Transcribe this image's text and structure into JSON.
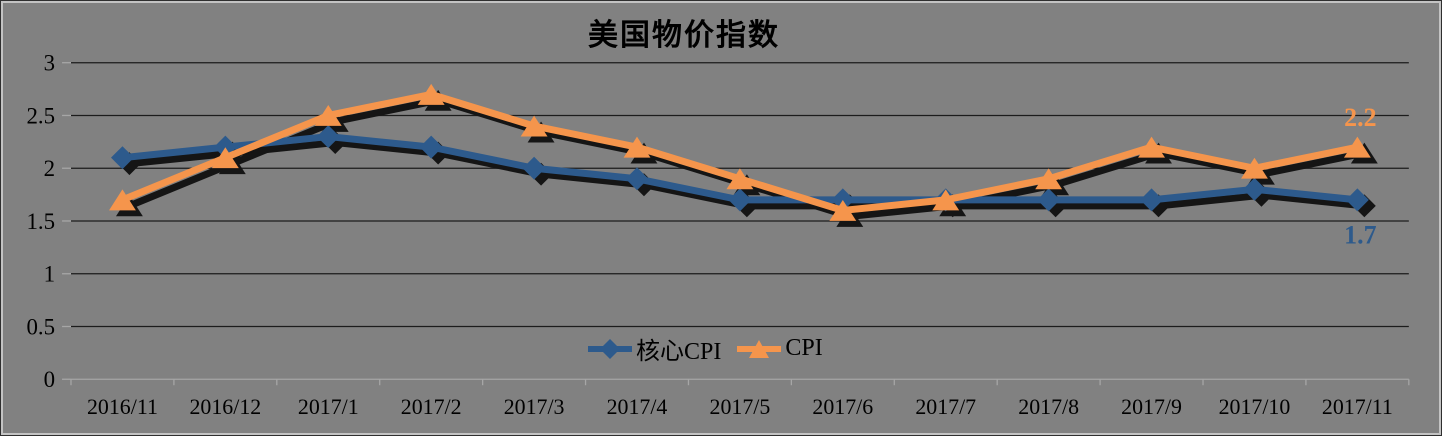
{
  "title": "美国物价指数",
  "colors": {
    "background": "#818181",
    "grid": "#1c1c1c",
    "axis": "#a6a6a6",
    "text": "#000000",
    "shadow": "#151515",
    "core_cpi": "#2D5A8C",
    "cpi": "#F5954C"
  },
  "chart_data": {
    "type": "line",
    "title": "美国物价指数",
    "categories": [
      "2016/11",
      "2016/12",
      "2017/1",
      "2017/2",
      "2017/3",
      "2017/4",
      "2017/5",
      "2017/6",
      "2017/7",
      "2017/8",
      "2017/9",
      "2017/10",
      "2017/11"
    ],
    "series": [
      {
        "name": "核心CPI",
        "marker": "diamond",
        "color": "#2D5A8C",
        "values": [
          2.1,
          2.2,
          2.3,
          2.2,
          2.0,
          1.9,
          1.7,
          1.7,
          1.7,
          1.7,
          1.7,
          1.8,
          1.7
        ]
      },
      {
        "name": "CPI",
        "marker": "triangle",
        "color": "#F5954C",
        "values": [
          1.7,
          2.1,
          2.5,
          2.7,
          2.4,
          2.2,
          1.9,
          1.6,
          1.7,
          1.9,
          2.2,
          2.0,
          2.2
        ]
      }
    ],
    "xlabel": "",
    "ylabel": "",
    "ylim": [
      0,
      3
    ],
    "y_ticks": [
      0,
      0.5,
      1,
      1.5,
      2,
      2.5,
      3
    ],
    "grid": true,
    "legend_position": "bottom-center-inside",
    "annotations": [
      {
        "series_index": 1,
        "point_index": 12,
        "text": "2.2",
        "placement": "above"
      },
      {
        "series_index": 0,
        "point_index": 12,
        "text": "1.7",
        "placement": "below"
      }
    ]
  },
  "legend": {
    "items": [
      {
        "label": "核心CPI"
      },
      {
        "label": "CPI"
      }
    ]
  }
}
